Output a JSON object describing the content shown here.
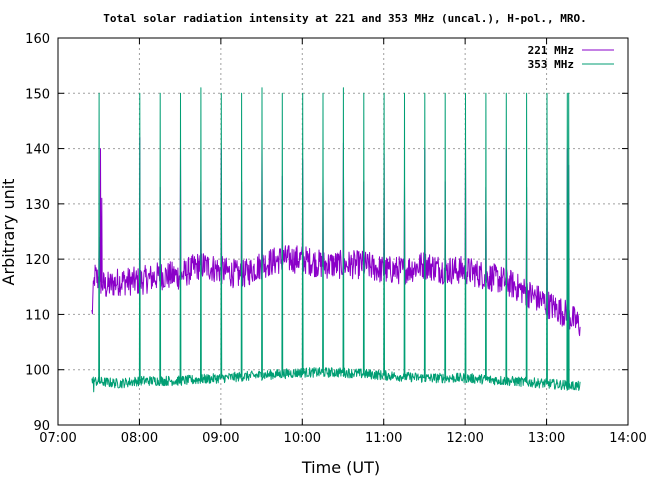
{
  "chart_data": {
    "type": "line",
    "title": "Total solar radiation intensity at 221 and 353 MHz (uncal.), H-pol., MRO.",
    "xlabel": "Time (UT)",
    "ylabel": "Arbitrary unit",
    "xlim": [
      "07:00",
      "14:00"
    ],
    "ylim": [
      90,
      160
    ],
    "x_ticks": [
      "07:00",
      "08:00",
      "09:00",
      "10:00",
      "11:00",
      "12:00",
      "13:00",
      "14:00"
    ],
    "y_ticks": [
      90,
      100,
      110,
      120,
      130,
      140,
      150,
      160
    ],
    "grid": true,
    "legend_position": "top-right",
    "colors": {
      "s221": "#8a00c8",
      "s353": "#009e73",
      "grid": "#a0a0a0"
    },
    "series": [
      {
        "name": "221 MHz",
        "color": "#8a00c8",
        "baseline_points": [
          [
            "07:25",
            110
          ],
          [
            "07:27",
            117
          ],
          [
            "07:35",
            115
          ],
          [
            "07:45",
            116
          ],
          [
            "08:00",
            116
          ],
          [
            "08:15",
            117
          ],
          [
            "08:30",
            117
          ],
          [
            "08:45",
            119
          ],
          [
            "09:00",
            118
          ],
          [
            "09:15",
            117
          ],
          [
            "09:30",
            119
          ],
          [
            "09:45",
            120
          ],
          [
            "10:00",
            120
          ],
          [
            "10:15",
            119
          ],
          [
            "10:30",
            119
          ],
          [
            "10:45",
            119
          ],
          [
            "11:00",
            118
          ],
          [
            "11:15",
            118
          ],
          [
            "11:30",
            119
          ],
          [
            "11:45",
            118
          ],
          [
            "12:00",
            118
          ],
          [
            "12:15",
            117
          ],
          [
            "12:30",
            116
          ],
          [
            "12:45",
            114
          ],
          [
            "13:00",
            112
          ],
          [
            "13:15",
            110
          ],
          [
            "13:25",
            108
          ]
        ],
        "spikes": [
          [
            "07:30",
            124
          ],
          [
            "07:31",
            140
          ],
          [
            "07:32",
            131
          ],
          [
            "08:00",
            142
          ],
          [
            "08:15",
            133
          ],
          [
            "08:30",
            141
          ],
          [
            "08:45",
            134
          ],
          [
            "09:00",
            140
          ],
          [
            "09:15",
            134
          ],
          [
            "09:30",
            141
          ],
          [
            "09:45",
            135
          ],
          [
            "10:00",
            138
          ],
          [
            "10:15",
            135
          ],
          [
            "10:30",
            141
          ],
          [
            "10:45",
            134
          ],
          [
            "11:00",
            139
          ],
          [
            "11:15",
            134
          ],
          [
            "11:30",
            140
          ],
          [
            "11:45",
            134
          ],
          [
            "12:00",
            141
          ],
          [
            "12:15",
            133
          ],
          [
            "12:30",
            140
          ],
          [
            "12:45",
            133
          ],
          [
            "13:00",
            137
          ],
          [
            "13:15",
            140
          ],
          [
            "13:16",
            137
          ]
        ]
      },
      {
        "name": "353 MHz",
        "color": "#009e73",
        "baseline_points": [
          [
            "07:25",
            98
          ],
          [
            "07:45",
            97.5
          ],
          [
            "08:00",
            98
          ],
          [
            "08:30",
            98
          ],
          [
            "09:00",
            98.5
          ],
          [
            "09:30",
            99
          ],
          [
            "10:00",
            99.5
          ],
          [
            "10:30",
            99.5
          ],
          [
            "11:00",
            99
          ],
          [
            "11:30",
            98.5
          ],
          [
            "12:00",
            98.5
          ],
          [
            "12:30",
            98
          ],
          [
            "13:00",
            97.5
          ],
          [
            "13:25",
            97
          ]
        ],
        "spikes": [
          [
            "07:26",
            96
          ],
          [
            "07:30",
            150
          ],
          [
            "08:00",
            150
          ],
          [
            "08:15",
            150
          ],
          [
            "08:30",
            150
          ],
          [
            "08:45",
            151
          ],
          [
            "09:00",
            150
          ],
          [
            "09:15",
            150
          ],
          [
            "09:30",
            151
          ],
          [
            "09:45",
            150
          ],
          [
            "10:00",
            150
          ],
          [
            "10:15",
            150
          ],
          [
            "10:30",
            151
          ],
          [
            "10:45",
            150
          ],
          [
            "11:00",
            150
          ],
          [
            "11:15",
            150
          ],
          [
            "11:30",
            150
          ],
          [
            "11:45",
            150
          ],
          [
            "12:00",
            150
          ],
          [
            "12:15",
            150
          ],
          [
            "12:30",
            150
          ],
          [
            "12:45",
            150
          ],
          [
            "13:00",
            150
          ],
          [
            "13:15",
            150
          ],
          [
            "13:16",
            150
          ]
        ]
      }
    ]
  }
}
